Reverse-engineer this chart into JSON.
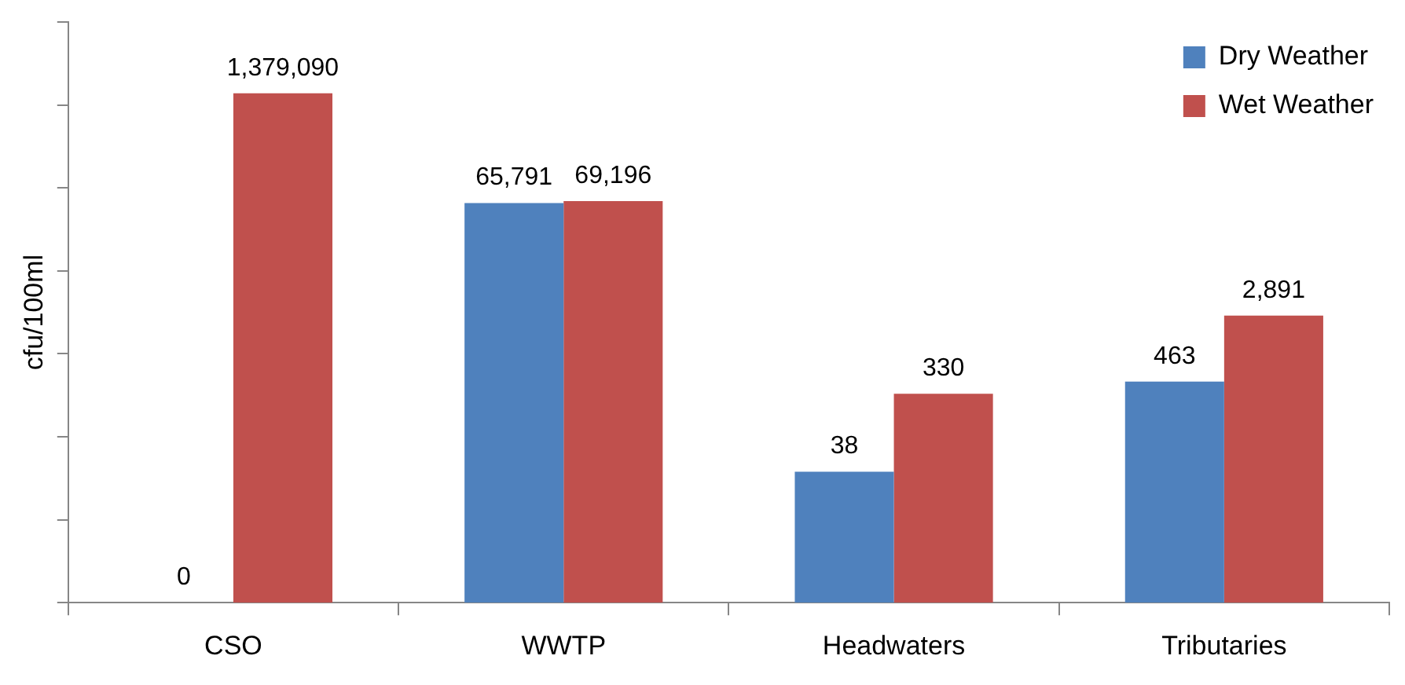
{
  "chart_data": {
    "type": "bar",
    "ylabel": "cfu/100ml",
    "categories": [
      "CSO",
      "WWTP",
      "Headwaters",
      "Tributaries"
    ],
    "series": [
      {
        "name": "Dry Weather",
        "color": "#4f81bd",
        "values": [
          null,
          65791,
          38,
          463
        ],
        "value_labels": [
          "0",
          "65,791",
          "38",
          "463"
        ]
      },
      {
        "name": "Wet Weather",
        "color": "#c0504d",
        "values": [
          1379090,
          69196,
          330,
          2891
        ],
        "value_labels": [
          "1,379,090",
          "69,196",
          "330",
          "2,891"
        ]
      }
    ],
    "log": "y",
    "ylim": [
      1,
      10000000
    ],
    "yticks": [
      {
        "value": 1,
        "label": null
      },
      {
        "value": 10,
        "label": null
      },
      {
        "value": 100,
        "label": null
      },
      {
        "value": 1000,
        "label": null
      },
      {
        "value": 10000,
        "label": null
      },
      {
        "value": 100000,
        "label": null
      },
      {
        "value": 1000000,
        "label": null
      },
      {
        "value": 10000000,
        "label": null
      }
    ],
    "tick_labels": "x",
    "grid": false,
    "legend": "top right"
  }
}
